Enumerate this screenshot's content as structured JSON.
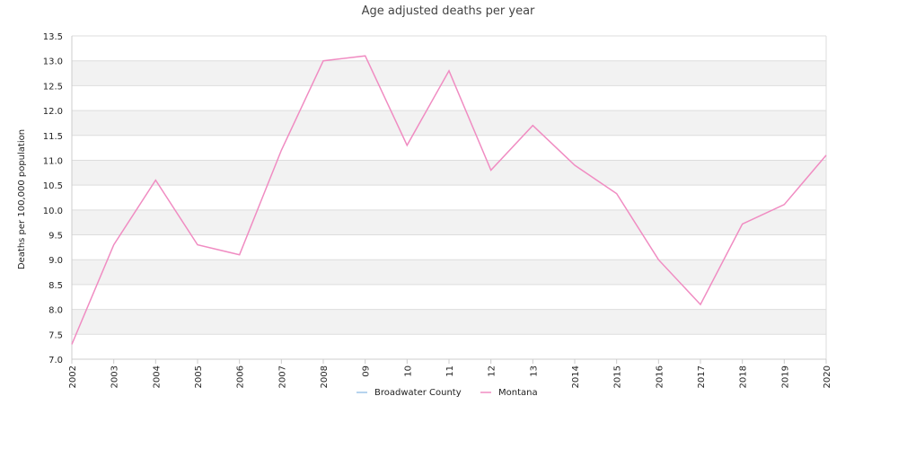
{
  "chart_data": {
    "type": "line",
    "title": "Age adjusted deaths per year",
    "xlabel": "",
    "ylabel": "Deaths per 100,000 population",
    "ylim": [
      7.0,
      13.5
    ],
    "yticks": [
      "7.0",
      "7.5",
      "8.0",
      "8.5",
      "9.0",
      "9.5",
      "10.0",
      "10.5",
      "11.0",
      "11.5",
      "12.0",
      "12.5",
      "13.0",
      "13.5"
    ],
    "categories": [
      "2002",
      "2003",
      "2004",
      "2005",
      "2006",
      "2007",
      "2008",
      "09",
      "10",
      "11",
      "12",
      "13",
      "2014",
      "2015",
      "2016",
      "2017",
      "2018",
      "2019",
      "2020"
    ],
    "grid": true,
    "legend_position": "bottom-center",
    "series": [
      {
        "name": "Broadwater County",
        "color": "#9ec5e8",
        "values": [
          null,
          null,
          null,
          null,
          null,
          null,
          null,
          null,
          null,
          null,
          null,
          null,
          null,
          null,
          null,
          null,
          null,
          null,
          null
        ]
      },
      {
        "name": "Montana",
        "color": "#f08cc2",
        "values": [
          7.3,
          9.3,
          10.6,
          9.3,
          9.1,
          11.2,
          13.0,
          13.1,
          11.3,
          12.8,
          10.8,
          11.7,
          10.9,
          10.33,
          9.0,
          8.1,
          9.72,
          10.11,
          11.1
        ]
      }
    ]
  }
}
